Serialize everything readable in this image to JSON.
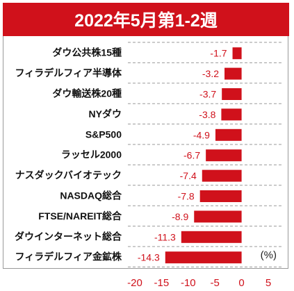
{
  "header": {
    "title": "2022年5月第1-2週"
  },
  "chart_data": {
    "type": "bar",
    "orientation": "horizontal",
    "categories": [
      "ダウ公共株15種",
      "フィラデルフィア半導体",
      "ダウ輸送株20種",
      "NYダウ",
      "S&P500",
      "ラッセル2000",
      "ナスダックバイオテック",
      "NASDAQ総合",
      "FTSE/NAREIT総合",
      "ダウインターネット総合",
      "フィラデルフィア金鉱株"
    ],
    "values": [
      -1.7,
      -3.2,
      -3.7,
      -3.8,
      -4.9,
      -6.7,
      -7.4,
      -7.8,
      -8.9,
      -11.3,
      -14.3
    ],
    "value_labels": [
      "-1.7",
      "-3.2",
      "-3.7",
      "-3.8",
      "-4.9",
      "-6.7",
      "-7.4",
      "-7.8",
      "-8.9",
      "-11.3",
      "-14.3"
    ],
    "xlim": [
      -20,
      5
    ],
    "xticks": [
      -20,
      -15,
      -10,
      -5,
      0,
      5
    ],
    "unit_label": "(%)",
    "bar_color": "#d0111b",
    "gridlines": "dashed horizontal"
  }
}
